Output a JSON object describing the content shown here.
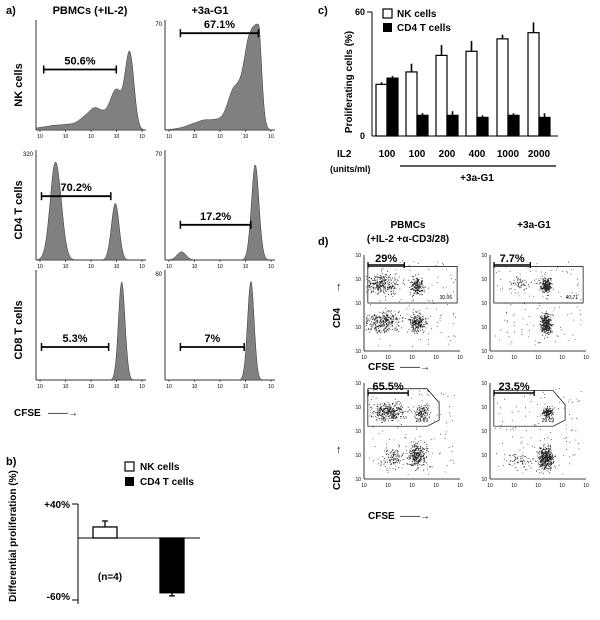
{
  "colors": {
    "histogram_fill": "#808080",
    "ink": "#000000",
    "dots": "#222222"
  },
  "panel_a": {
    "label": "a)",
    "col_headers": [
      "PBMCs (+IL-2)",
      "+3a-G1"
    ],
    "row_labels": [
      "NK cells",
      "CD4 T cells",
      "CD8 T cells"
    ],
    "ymax_labels": [
      [
        "",
        "70"
      ],
      [
        "320",
        "70"
      ],
      [
        "",
        "60"
      ]
    ],
    "percentages": [
      [
        "50.6%",
        "67.1%"
      ],
      [
        "70.2%",
        "17.2%"
      ],
      [
        "5.3%",
        "7%"
      ]
    ],
    "xaxis_label": "CFSE",
    "arrow": "——→",
    "tick_base": "10"
  },
  "chart_data": [
    {
      "panel": "b",
      "type": "bar",
      "label": "b)",
      "categories": [
        "NK cells",
        "CD4 T cells"
      ],
      "values": [
        13,
        -53
      ],
      "errors": [
        7,
        3
      ],
      "ylabel": "Differential proliferation (%)",
      "ytick_labels": [
        "+40%",
        "-60%"
      ],
      "ylim": [
        -60,
        40
      ],
      "annotation": "(n=4)"
    },
    {
      "panel": "c",
      "type": "bar",
      "label": "c)",
      "ylabel": "Proliferating cells (%)",
      "ylim": [
        0,
        60
      ],
      "ytick_labels": [
        "0",
        "60"
      ],
      "x_title": "IL2",
      "x_title_units": "(units/ml)",
      "categories": [
        "100",
        "100",
        "200",
        "400",
        "1000",
        "2000"
      ],
      "group_label": "+3a-G1",
      "series": [
        {
          "name": "NK cells",
          "values": [
            25,
            31,
            39,
            41,
            47,
            50
          ],
          "errors": [
            1,
            4,
            5,
            5,
            2,
            5
          ]
        },
        {
          "name": "CD4 T cells",
          "values": [
            28,
            10,
            10,
            9,
            10,
            9
          ],
          "errors": [
            1,
            1,
            2,
            1,
            1,
            2
          ]
        }
      ]
    }
  ],
  "panel_d": {
    "label": "d)",
    "col_headers": [
      "PBMCs",
      "(+IL-2 +α-CD3/28)",
      "+3a-G1"
    ],
    "row_labels": [
      "CD4",
      "CD8"
    ],
    "xaxis_label": "CFSE",
    "arrow": "——→",
    "up_arrow": "↑",
    "tick_base": "10",
    "percentages": [
      [
        "29%",
        "7.7%"
      ],
      [
        "65.5%",
        "23.5%"
      ]
    ],
    "gate_values": [
      [
        "30.06",
        "40.71"
      ],
      [
        "26.69",
        "29.19"
      ]
    ]
  }
}
